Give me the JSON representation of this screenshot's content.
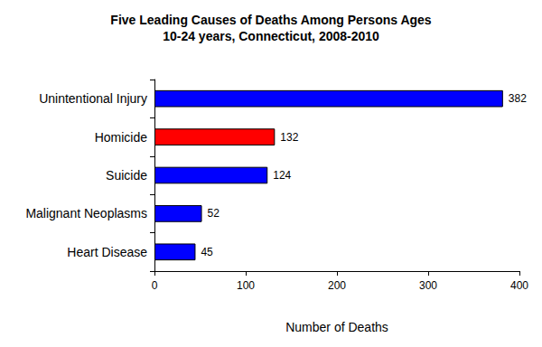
{
  "chart_data": {
    "type": "bar",
    "orientation": "horizontal",
    "title": "Five Leading Causes of Deaths Among Persons Ages\n10-24 years, Connecticut, 2008-2010",
    "categories": [
      "Unintentional Injury",
      "Homicide",
      "Suicide",
      "Malignant Neoplasms",
      "Heart Disease"
    ],
    "values": [
      382,
      132,
      124,
      52,
      45
    ],
    "colors": [
      "#0000ff",
      "#ff0000",
      "#0000ff",
      "#0000ff",
      "#0000ff"
    ],
    "xlabel": "Number of Deaths",
    "xlim": [
      0,
      400
    ],
    "xticks": [
      0,
      100,
      200,
      300,
      400
    ],
    "grid": false,
    "data_labels": true
  }
}
